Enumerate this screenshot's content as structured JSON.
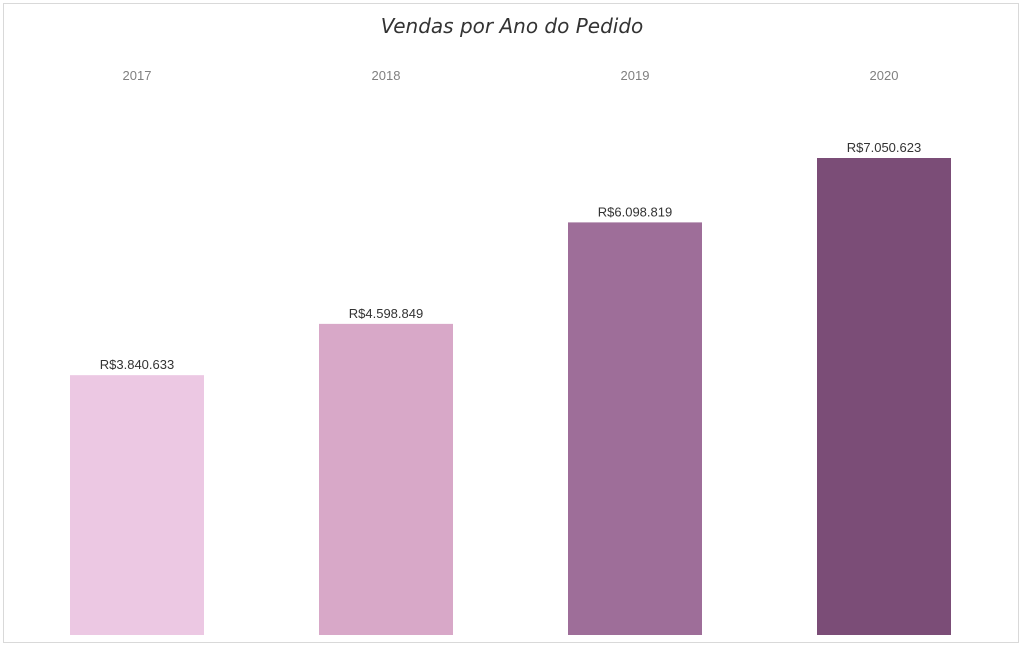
{
  "chart_data": {
    "type": "bar",
    "title": "Vendas por Ano do Pedido",
    "categories": [
      "2017",
      "2018",
      "2019",
      "2020"
    ],
    "values": [
      3840633,
      4598849,
      6098819,
      7050623
    ],
    "value_labels": [
      "R$3.840.633",
      "R$4.598.849",
      "R$6.098.819",
      "R$7.050.623"
    ],
    "colors": [
      "#ecc8e3",
      "#d8a8c8",
      "#9e6e99",
      "#7b4d77"
    ],
    "xlabel": "",
    "ylabel": "",
    "ylim": [
      0,
      7800000
    ],
    "grid": false,
    "legend": "none",
    "category_axis_position": "top"
  }
}
